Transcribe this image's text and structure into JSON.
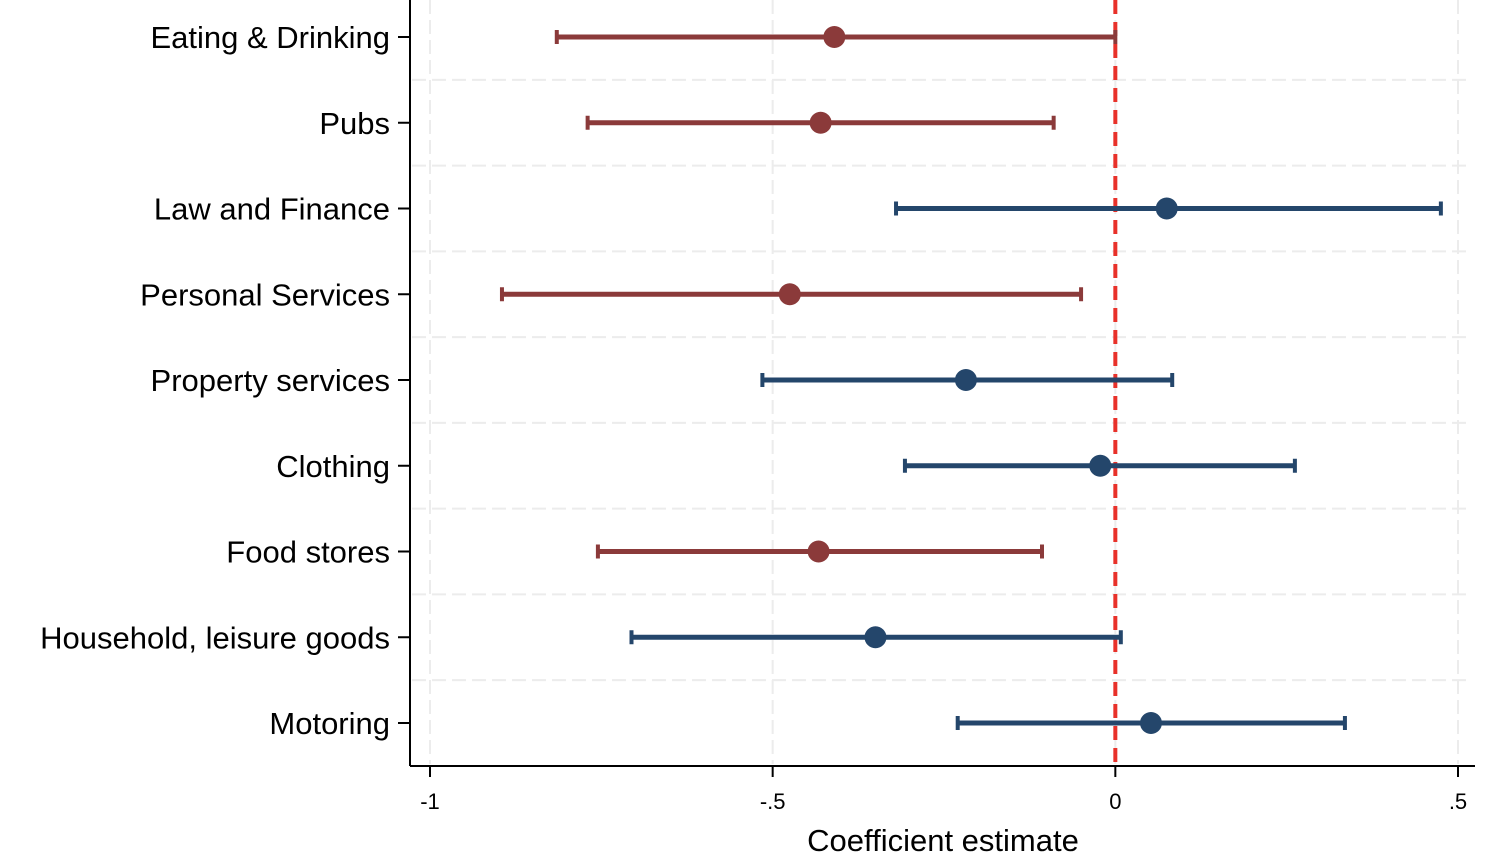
{
  "chart_data": {
    "type": "coefficient_plot",
    "title": "",
    "xlabel": "Coefficient estimate",
    "ylabel": "",
    "xlim": [
      -1,
      0.5
    ],
    "xticks": [
      {
        "value": -1,
        "label": "-1"
      },
      {
        "value": -0.5,
        "label": "-.5"
      },
      {
        "value": 0,
        "label": "0"
      },
      {
        "value": 0.5,
        "label": ".5"
      }
    ],
    "reference_line": {
      "value": 0,
      "style": "dashed",
      "color": "#e8312a"
    },
    "grid": true,
    "colors": {
      "significant": "#8b3a3a",
      "not_significant": "#24466b"
    },
    "categories": [
      {
        "label": "Eating & Drinking",
        "estimate": -0.41,
        "ci_low": -0.815,
        "ci_high": 0.0,
        "significant": true
      },
      {
        "label": "Pubs",
        "estimate": -0.43,
        "ci_low": -0.77,
        "ci_high": -0.09,
        "significant": true
      },
      {
        "label": "Law and Finance",
        "estimate": 0.075,
        "ci_low": -0.32,
        "ci_high": 0.475,
        "significant": false
      },
      {
        "label": "Personal Services",
        "estimate": -0.475,
        "ci_low": -0.895,
        "ci_high": -0.05,
        "significant": true
      },
      {
        "label": "Property services",
        "estimate": -0.218,
        "ci_low": -0.515,
        "ci_high": 0.083,
        "significant": false
      },
      {
        "label": "Clothing",
        "estimate": -0.022,
        "ci_low": -0.307,
        "ci_high": 0.262,
        "significant": false
      },
      {
        "label": "Food stores",
        "estimate": -0.433,
        "ci_low": -0.755,
        "ci_high": -0.107,
        "significant": true
      },
      {
        "label": "Household, leisure goods",
        "estimate": -0.35,
        "ci_low": -0.706,
        "ci_high": 0.008,
        "significant": false
      },
      {
        "label": "Motoring",
        "estimate": 0.052,
        "ci_low": -0.23,
        "ci_high": 0.335,
        "significant": false
      }
    ]
  }
}
